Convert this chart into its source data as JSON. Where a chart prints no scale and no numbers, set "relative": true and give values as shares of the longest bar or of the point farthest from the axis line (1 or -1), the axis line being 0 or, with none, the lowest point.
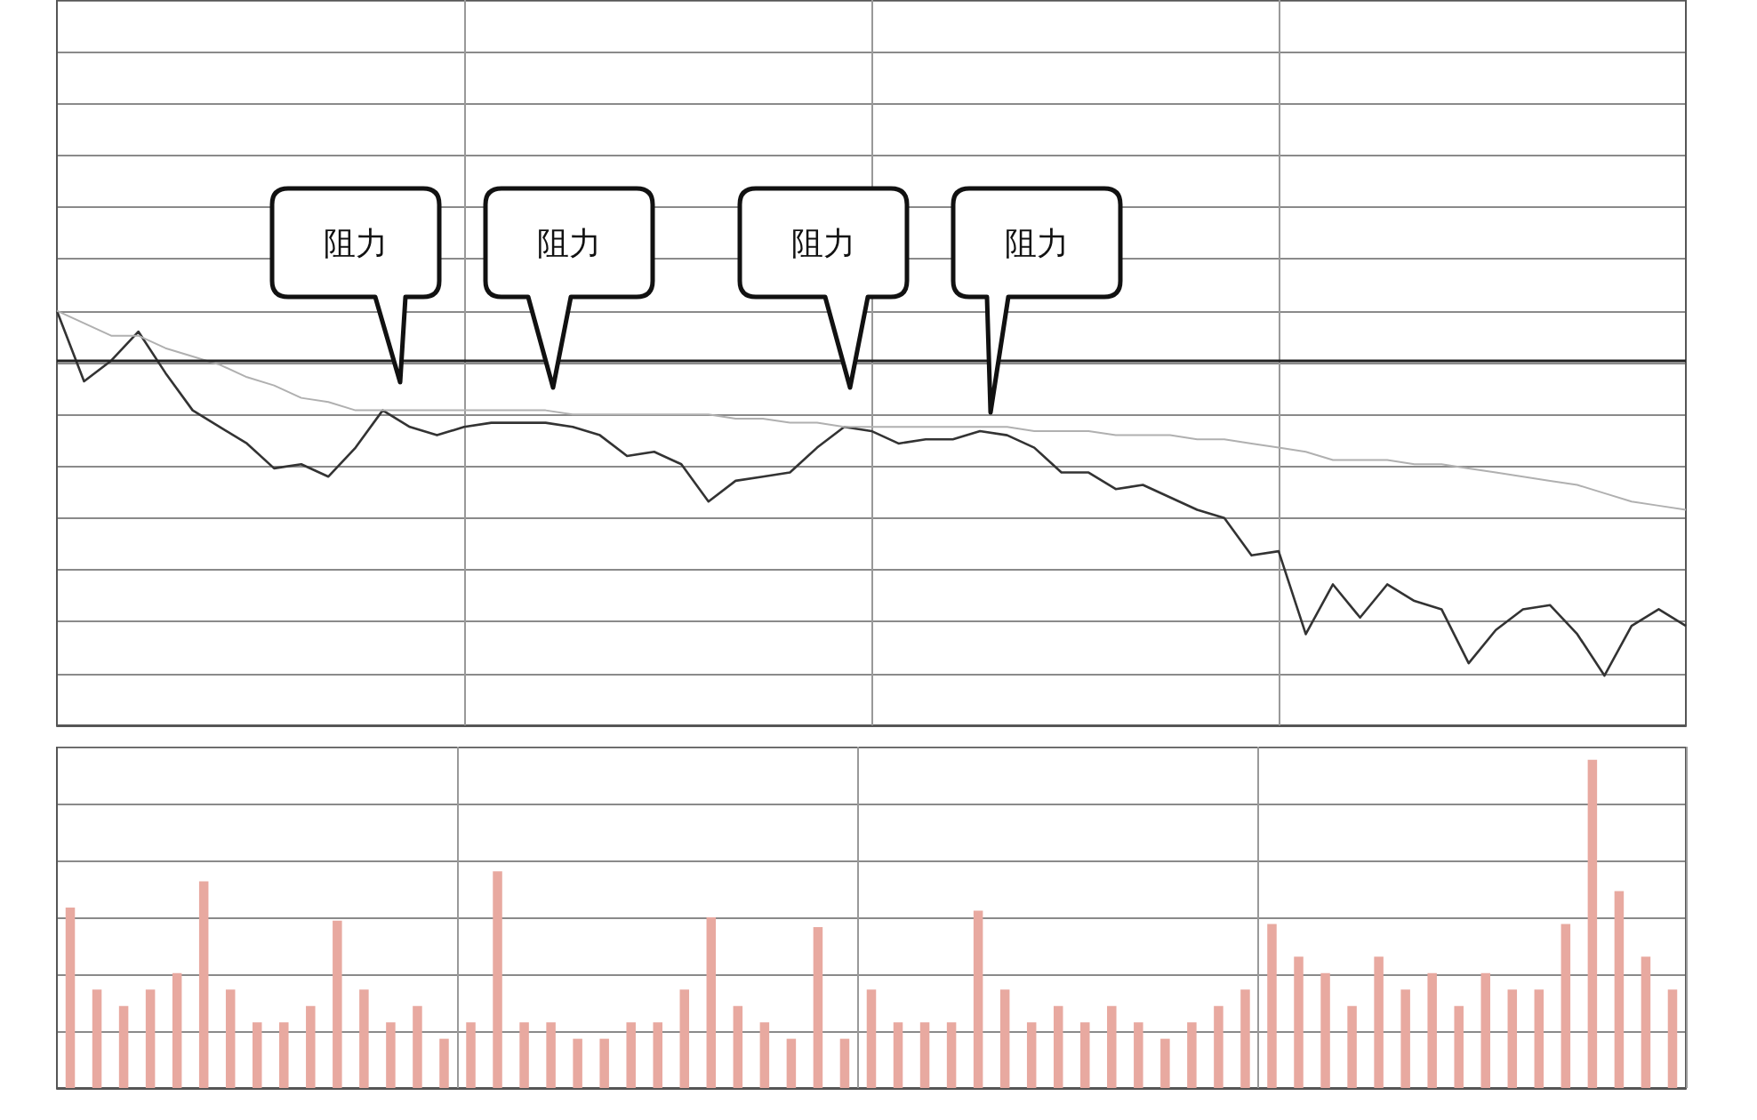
{
  "chart_data": [
    {
      "type": "line",
      "relative": true,
      "categories": [
        null,
        null,
        null,
        null,
        null,
        null,
        null,
        null,
        null,
        null,
        null,
        null,
        null,
        null,
        null,
        null,
        null,
        null,
        null,
        null,
        null,
        null,
        null,
        null,
        null,
        null,
        null,
        null,
        null,
        null,
        null,
        null,
        null,
        null,
        null,
        null,
        null,
        null,
        null,
        null,
        null,
        null,
        null,
        null,
        null,
        null,
        null,
        null,
        null,
        null,
        null,
        null,
        null,
        null,
        null,
        null,
        null,
        null,
        null,
        null,
        null
      ],
      "series": [
        {
          "color": "#333333",
          "values": [
            1.0,
            0.83,
            0.88,
            0.95,
            0.85,
            0.76,
            0.72,
            0.68,
            0.62,
            0.63,
            0.6,
            0.67,
            0.76,
            0.72,
            0.7,
            0.72,
            0.73,
            0.73,
            0.73,
            0.72,
            0.7,
            0.65,
            0.66,
            0.63,
            0.54,
            0.59,
            0.6,
            0.61,
            0.67,
            0.72,
            0.71,
            0.68,
            0.69,
            0.69,
            0.71,
            0.7,
            0.67,
            0.61,
            0.61,
            0.57,
            0.58,
            0.55,
            0.52,
            0.5,
            0.41,
            0.42,
            0.22,
            0.34,
            0.26,
            0.34,
            0.3,
            0.28,
            0.15,
            0.23,
            0.28,
            0.29,
            0.22,
            0.12,
            0.24,
            0.28,
            0.24
          ]
        },
        {
          "color": "#b0b0b0",
          "values": [
            1.0,
            0.97,
            0.94,
            0.94,
            0.91,
            0.89,
            0.87,
            0.84,
            0.82,
            0.79,
            0.78,
            0.76,
            0.76,
            0.76,
            0.76,
            0.76,
            0.76,
            0.76,
            0.76,
            0.75,
            0.75,
            0.75,
            0.75,
            0.75,
            0.75,
            0.74,
            0.74,
            0.73,
            0.73,
            0.72,
            0.72,
            0.72,
            0.72,
            0.72,
            0.72,
            0.72,
            0.71,
            0.71,
            0.71,
            0.7,
            0.7,
            0.7,
            0.69,
            0.69,
            0.68,
            0.67,
            0.66,
            0.64,
            0.64,
            0.64,
            0.63,
            0.63,
            0.62,
            0.61,
            0.6,
            0.59,
            0.58,
            0.56,
            0.54,
            0.53,
            0.52
          ]
        }
      ],
      "ref_lines": [
        {
          "axis": "y",
          "value": 0.88,
          "color": "#222222"
        }
      ],
      "annotations": [
        "阻力",
        "阻力",
        "阻力",
        "阻力"
      ],
      "grid": true,
      "marker": "none",
      "line_style": "solid"
    },
    {
      "type": "bar",
      "relative": true,
      "categories": [
        null,
        null,
        null,
        null,
        null,
        null,
        null,
        null,
        null,
        null,
        null,
        null,
        null,
        null,
        null,
        null,
        null,
        null,
        null,
        null,
        null,
        null,
        null,
        null,
        null,
        null,
        null,
        null,
        null,
        null,
        null,
        null,
        null,
        null,
        null,
        null,
        null,
        null,
        null,
        null,
        null,
        null,
        null,
        null,
        null,
        null,
        null,
        null,
        null,
        null,
        null,
        null,
        null,
        null,
        null,
        null,
        null,
        null,
        null,
        null,
        null
      ],
      "values": [
        0.55,
        0.3,
        0.25,
        0.3,
        0.35,
        0.63,
        0.3,
        0.2,
        0.2,
        0.25,
        0.51,
        0.3,
        0.2,
        0.25,
        0.15,
        0.2,
        0.66,
        0.2,
        0.2,
        0.15,
        0.15,
        0.2,
        0.2,
        0.3,
        0.52,
        0.25,
        0.2,
        0.15,
        0.49,
        0.15,
        0.3,
        0.2,
        0.2,
        0.2,
        0.54,
        0.3,
        0.2,
        0.25,
        0.2,
        0.25,
        0.2,
        0.15,
        0.2,
        0.25,
        0.3,
        0.5,
        0.4,
        0.35,
        0.25,
        0.4,
        0.3,
        0.35,
        0.25,
        0.35,
        0.3,
        0.3,
        0.5,
        1.0,
        0.6,
        0.4,
        0.3
      ],
      "color": "#e8a9a0",
      "grid": true
    }
  ]
}
